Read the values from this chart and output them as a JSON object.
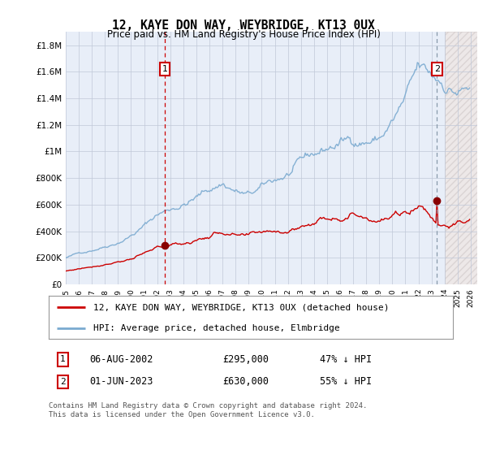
{
  "title": "12, KAYE DON WAY, WEYBRIDGE, KT13 0UX",
  "subtitle": "Price paid vs. HM Land Registry's House Price Index (HPI)",
  "ylabel_ticks": [
    "£0",
    "£200K",
    "£400K",
    "£600K",
    "£800K",
    "£1M",
    "£1.2M",
    "£1.4M",
    "£1.6M",
    "£1.8M"
  ],
  "ytick_values": [
    0,
    200000,
    400000,
    600000,
    800000,
    1000000,
    1200000,
    1400000,
    1600000,
    1800000
  ],
  "ylim": [
    0,
    1900000
  ],
  "xlim_start": 1995.0,
  "xlim_end": 2026.5,
  "sale1": {
    "date_num": 2002.58,
    "price": 295000,
    "label": "1",
    "date_str": "06-AUG-2002",
    "amount": "£295,000",
    "pct": "47% ↓ HPI"
  },
  "sale2": {
    "date_num": 2023.42,
    "price": 630000,
    "label": "2",
    "date_str": "01-JUN-2023",
    "amount": "£630,000",
    "pct": "55% ↓ HPI"
  },
  "legend_line1": "12, KAYE DON WAY, WEYBRIDGE, KT13 0UX (detached house)",
  "legend_line2": "HPI: Average price, detached house, Elmbridge",
  "footnote": "Contains HM Land Registry data © Crown copyright and database right 2024.\nThis data is licensed under the Open Government Licence v3.0.",
  "red_color": "#cc0000",
  "blue_color": "#7aaad0",
  "background_color": "#e8eef8",
  "hatch_bg": "#f0e8e8",
  "grid_color": "#c0c8d8",
  "future_start": 2024.0
}
